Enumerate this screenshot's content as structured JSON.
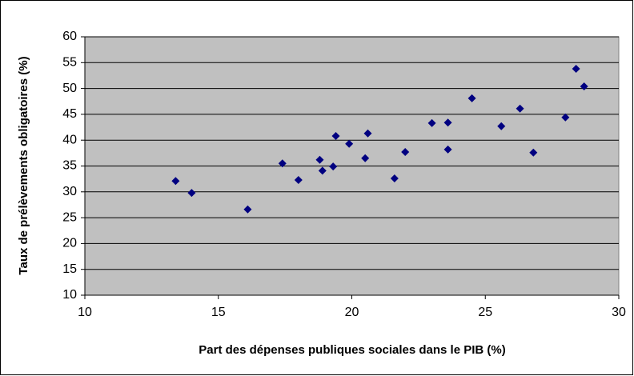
{
  "chart_data": {
    "type": "scatter",
    "x_label": "Part des dépenses publiques sociales dans le PIB (%)",
    "y_label": "Taux de prélèvements obligatoires (%)",
    "x": [
      13.4,
      14.0,
      16.1,
      17.4,
      18.0,
      18.8,
      18.9,
      19.3,
      19.4,
      19.9,
      20.5,
      20.6,
      21.6,
      22.0,
      23.0,
      23.6,
      23.6,
      24.5,
      25.6,
      26.3,
      26.8,
      28.0,
      28.4,
      28.7
    ],
    "values": [
      32.1,
      29.8,
      26.6,
      35.5,
      32.3,
      36.2,
      34.1,
      34.9,
      40.8,
      39.3,
      36.5,
      41.3,
      32.6,
      37.7,
      43.3,
      43.4,
      38.2,
      48.1,
      42.7,
      46.1,
      37.6,
      44.4,
      53.8,
      50.4
    ],
    "color": "#000080",
    "xlim": [
      10,
      30
    ],
    "xticks": [
      10,
      15,
      20,
      25,
      30
    ],
    "ylim": [
      10,
      60
    ],
    "yticks": [
      10,
      15,
      20,
      25,
      30,
      35,
      40,
      45,
      50,
      55,
      60
    ],
    "grid": true
  }
}
